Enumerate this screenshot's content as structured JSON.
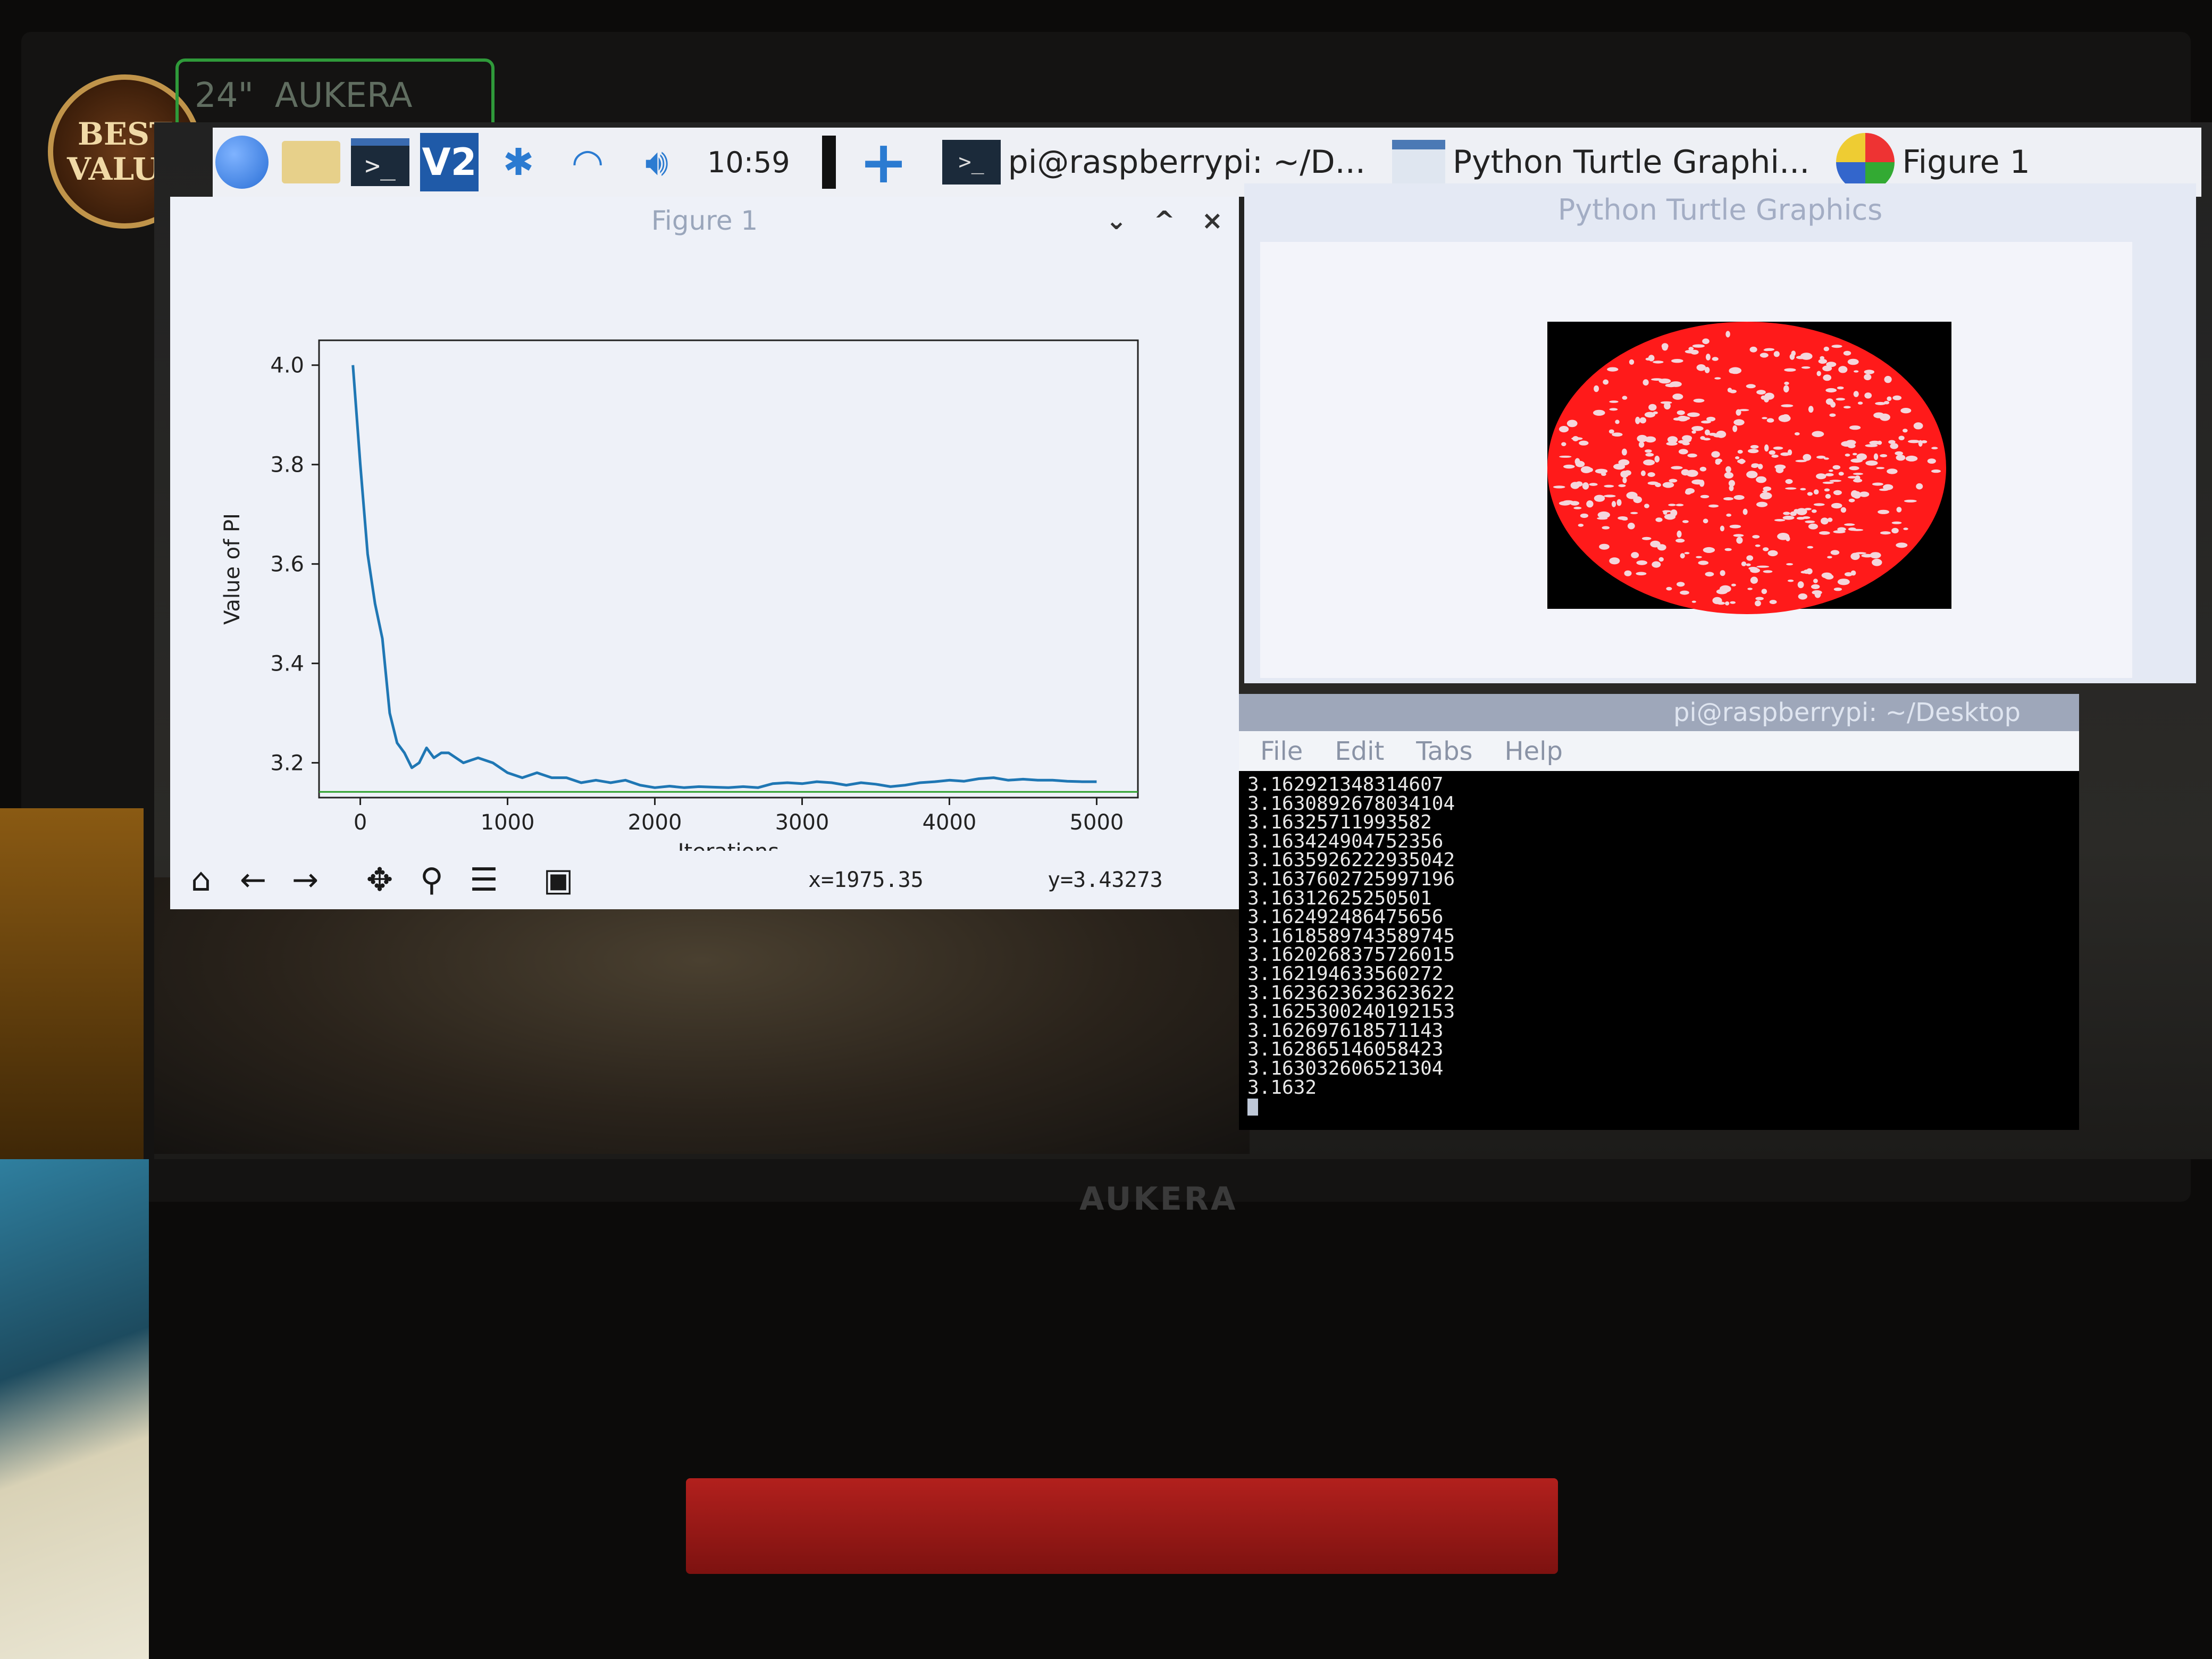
{
  "physical": {
    "badge_text": "BEST VALUE",
    "sticker_text": "24\"",
    "sticker_brand": "AUKERA",
    "stand_logo": "AUKERA"
  },
  "taskbar": {
    "clock": "10:59",
    "tasks": [
      {
        "label": "pi@raspberrypi: ~/D..."
      },
      {
        "label": "Python Turtle Graphi..."
      },
      {
        "label": "Figure 1"
      }
    ]
  },
  "figure_window": {
    "title": "Figure 1",
    "controls": {
      "minimize": "⌄",
      "maximize": "^",
      "close": "×"
    },
    "coord_x": "x=1975.35",
    "coord_y": "y=3.43273"
  },
  "chart_data": {
    "type": "line",
    "title": "",
    "xlabel": "Iterations",
    "ylabel": "Value of PI",
    "xlim": [
      -280,
      5280
    ],
    "ylim": [
      3.13,
      4.05
    ],
    "xticks": [
      0,
      1000,
      2000,
      3000,
      4000,
      5000
    ],
    "yticks": [
      3.2,
      3.4,
      3.6,
      3.8,
      4.0
    ],
    "xtick_labels": [
      "0",
      "1000",
      "2000",
      "3000",
      "4000",
      "5000"
    ],
    "ytick_labels": [
      "3.2",
      "3.4",
      "3.6",
      "3.8",
      "4.0"
    ],
    "series": [
      {
        "color": "#1f77b4",
        "x": [
          -50,
          0,
          50,
          100,
          150,
          200,
          250,
          300,
          350,
          400,
          450,
          500,
          550,
          600,
          700,
          800,
          900,
          1000,
          1100,
          1200,
          1300,
          1400,
          1500,
          1600,
          1700,
          1800,
          1900,
          2000,
          2100,
          2200,
          2300,
          2400,
          2500,
          2600,
          2700,
          2800,
          2900,
          3000,
          3100,
          3200,
          3300,
          3400,
          3500,
          3600,
          3700,
          3800,
          3900,
          4000,
          4100,
          4200,
          4300,
          4400,
          4500,
          4600,
          4700,
          4800,
          4900,
          5000
        ],
        "y": [
          4.0,
          3.8,
          3.62,
          3.52,
          3.45,
          3.3,
          3.24,
          3.22,
          3.19,
          3.2,
          3.23,
          3.21,
          3.22,
          3.22,
          3.2,
          3.21,
          3.2,
          3.18,
          3.17,
          3.18,
          3.17,
          3.17,
          3.16,
          3.165,
          3.16,
          3.165,
          3.155,
          3.15,
          3.153,
          3.15,
          3.152,
          3.151,
          3.15,
          3.152,
          3.15,
          3.158,
          3.16,
          3.158,
          3.162,
          3.16,
          3.155,
          3.16,
          3.157,
          3.152,
          3.155,
          3.16,
          3.162,
          3.165,
          3.163,
          3.168,
          3.17,
          3.165,
          3.167,
          3.165,
          3.165,
          3.163,
          3.162,
          3.162
        ]
      },
      {
        "color": "#2ca02c",
        "x": [
          -280,
          5280
        ],
        "y": [
          3.14159,
          3.14159
        ]
      }
    ]
  },
  "turtle_window": {
    "title": "Python Turtle Graphics"
  },
  "terminal": {
    "title": "pi@raspberrypi: ~/Desktop",
    "menu": [
      "File",
      "Edit",
      "Tabs",
      "Help"
    ],
    "lines": [
      "3.162921348314607",
      "3.1630892678034104",
      "3.16325711993582",
      "3.163424904752356",
      "3.1635926222935042",
      "3.1637602725997196",
      "3.16312625250501",
      "3.162492486475656",
      "3.1618589743589745",
      "3.1620268375726015",
      "3.162194633560272",
      "3.1623623623623622",
      "3.1625300240192153",
      "3.162697618571143",
      "3.162865146058423",
      "3.163032606521304",
      "3.1632"
    ]
  },
  "colors": {
    "taskbar": "#eef0f5",
    "pi_series": "#1f77b4",
    "reference_line": "#2ca02c",
    "circle_fill": "#ff1a1a",
    "square_fill": "#000000"
  }
}
